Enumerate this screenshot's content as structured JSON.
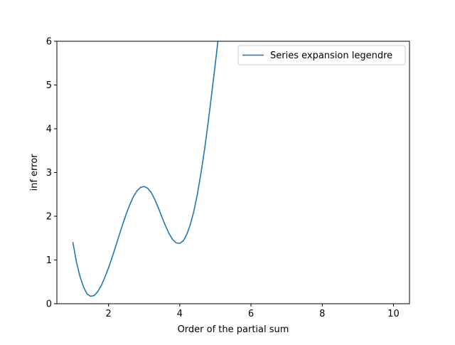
{
  "chart_data": {
    "type": "line",
    "xlabel": "Order of the partial sum",
    "ylabel": "inf error",
    "xlim": [
      0.55,
      10.45
    ],
    "ylim": [
      0,
      6
    ],
    "x_ticks": [
      2,
      4,
      6,
      8,
      10
    ],
    "y_ticks": [
      0,
      1,
      2,
      3,
      4,
      5,
      6
    ],
    "grid": false,
    "legend_position": "top-right",
    "series": [
      {
        "name": "Series expansion legendre",
        "color": "#1f77b4",
        "points": [
          [
            1.0,
            1.4
          ],
          [
            1.1,
            0.95
          ],
          [
            1.2,
            0.62
          ],
          [
            1.3,
            0.38
          ],
          [
            1.4,
            0.22
          ],
          [
            1.5,
            0.17
          ],
          [
            1.6,
            0.19
          ],
          [
            1.7,
            0.28
          ],
          [
            1.8,
            0.42
          ],
          [
            1.9,
            0.61
          ],
          [
            2.0,
            0.82
          ],
          [
            2.1,
            1.06
          ],
          [
            2.2,
            1.31
          ],
          [
            2.3,
            1.57
          ],
          [
            2.4,
            1.82
          ],
          [
            2.5,
            2.06
          ],
          [
            2.6,
            2.27
          ],
          [
            2.7,
            2.45
          ],
          [
            2.8,
            2.58
          ],
          [
            2.9,
            2.66
          ],
          [
            3.0,
            2.68
          ],
          [
            3.1,
            2.64
          ],
          [
            3.2,
            2.54
          ],
          [
            3.3,
            2.38
          ],
          [
            3.4,
            2.19
          ],
          [
            3.5,
            1.98
          ],
          [
            3.6,
            1.78
          ],
          [
            3.7,
            1.6
          ],
          [
            3.8,
            1.47
          ],
          [
            3.9,
            1.39
          ],
          [
            4.0,
            1.38
          ],
          [
            4.1,
            1.44
          ],
          [
            4.2,
            1.59
          ],
          [
            4.3,
            1.82
          ],
          [
            4.4,
            2.13
          ],
          [
            4.5,
            2.53
          ],
          [
            4.6,
            3.01
          ],
          [
            4.7,
            3.55
          ],
          [
            4.8,
            4.16
          ],
          [
            4.9,
            4.82
          ],
          [
            5.0,
            5.5
          ],
          [
            5.1,
            6.2
          ]
        ]
      }
    ]
  }
}
